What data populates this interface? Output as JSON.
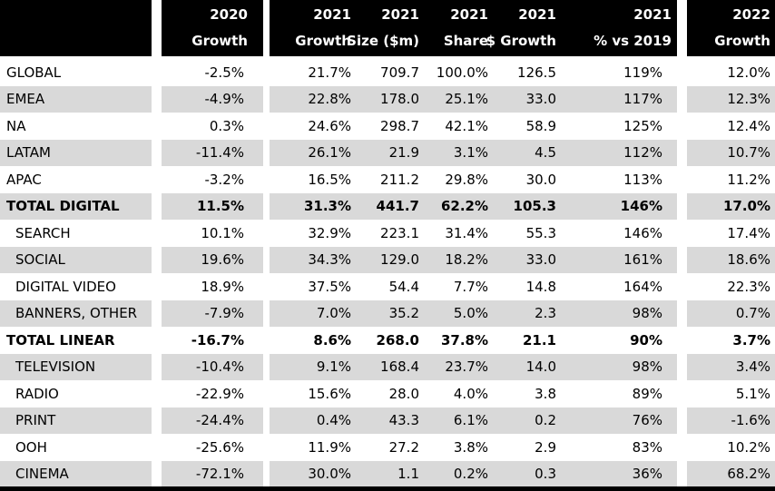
{
  "chart_data": {
    "type": "table",
    "header": [
      {
        "year": "",
        "label": ""
      },
      {
        "year": "2020",
        "label": "Growth"
      },
      {
        "year": "2021",
        "label": "Growth"
      },
      {
        "year": "2021",
        "label": "Size ($m)"
      },
      {
        "year": "2021",
        "label": "Share"
      },
      {
        "year": "2021",
        "label": "$ Growth"
      },
      {
        "year": "2021",
        "label": "% vs 2019"
      },
      {
        "year": "2022",
        "label": "Growth"
      }
    ],
    "rows": [
      {
        "label": "GLOBAL",
        "values": [
          "-2.5%",
          "21.7%",
          "709.7",
          "100.0%",
          "126.5",
          "119%",
          "12.0%"
        ],
        "bold": false,
        "indent": false,
        "shaded": false
      },
      {
        "label": "EMEA",
        "values": [
          "-4.9%",
          "22.8%",
          "178.0",
          "25.1%",
          "33.0",
          "117%",
          "12.3%"
        ],
        "bold": false,
        "indent": false,
        "shaded": true
      },
      {
        "label": "NA",
        "values": [
          "0.3%",
          "24.6%",
          "298.7",
          "42.1%",
          "58.9",
          "125%",
          "12.4%"
        ],
        "bold": false,
        "indent": false,
        "shaded": false
      },
      {
        "label": "LATAM",
        "values": [
          "-11.4%",
          "26.1%",
          "21.9",
          "3.1%",
          "4.5",
          "112%",
          "10.7%"
        ],
        "bold": false,
        "indent": false,
        "shaded": true
      },
      {
        "label": "APAC",
        "values": [
          "-3.2%",
          "16.5%",
          "211.2",
          "29.8%",
          "30.0",
          "113%",
          "11.2%"
        ],
        "bold": false,
        "indent": false,
        "shaded": false
      },
      {
        "label": "TOTAL DIGITAL",
        "values": [
          "11.5%",
          "31.3%",
          "441.7",
          "62.2%",
          "105.3",
          "146%",
          "17.0%"
        ],
        "bold": true,
        "indent": false,
        "shaded": true
      },
      {
        "label": "SEARCH",
        "values": [
          "10.1%",
          "32.9%",
          "223.1",
          "31.4%",
          "55.3",
          "146%",
          "17.4%"
        ],
        "bold": false,
        "indent": true,
        "shaded": false
      },
      {
        "label": "SOCIAL",
        "values": [
          "19.6%",
          "34.3%",
          "129.0",
          "18.2%",
          "33.0",
          "161%",
          "18.6%"
        ],
        "bold": false,
        "indent": true,
        "shaded": true
      },
      {
        "label": "DIGITAL VIDEO",
        "values": [
          "18.9%",
          "37.5%",
          "54.4",
          "7.7%",
          "14.8",
          "164%",
          "22.3%"
        ],
        "bold": false,
        "indent": true,
        "shaded": false
      },
      {
        "label": "BANNERS, OTHER",
        "values": [
          "-7.9%",
          "7.0%",
          "35.2",
          "5.0%",
          "2.3",
          "98%",
          "0.7%"
        ],
        "bold": false,
        "indent": true,
        "shaded": true
      },
      {
        "label": "TOTAL LINEAR",
        "values": [
          "-16.7%",
          "8.6%",
          "268.0",
          "37.8%",
          "21.1",
          "90%",
          "3.7%"
        ],
        "bold": true,
        "indent": false,
        "shaded": false
      },
      {
        "label": "TELEVISION",
        "values": [
          "-10.4%",
          "9.1%",
          "168.4",
          "23.7%",
          "14.0",
          "98%",
          "3.4%"
        ],
        "bold": false,
        "indent": true,
        "shaded": true
      },
      {
        "label": "RADIO",
        "values": [
          "-22.9%",
          "15.6%",
          "28.0",
          "4.0%",
          "3.8",
          "89%",
          "5.1%"
        ],
        "bold": false,
        "indent": true,
        "shaded": false
      },
      {
        "label": "PRINT",
        "values": [
          "-24.4%",
          "0.4%",
          "43.3",
          "6.1%",
          "0.2",
          "76%",
          "-1.6%"
        ],
        "bold": false,
        "indent": true,
        "shaded": true
      },
      {
        "label": "OOH",
        "values": [
          "-25.6%",
          "11.9%",
          "27.2",
          "3.8%",
          "2.9",
          "83%",
          "10.2%"
        ],
        "bold": false,
        "indent": true,
        "shaded": false
      },
      {
        "label": "CINEMA",
        "values": [
          "-72.1%",
          "30.0%",
          "1.1",
          "0.2%",
          "0.3",
          "36%",
          "68.2%"
        ],
        "bold": false,
        "indent": true,
        "shaded": true
      }
    ]
  },
  "colors": {
    "header_bg": "#000000",
    "header_text": "#ffffff",
    "shaded_row": "#d9d9d9",
    "text": "#000000",
    "bottom_rule": "#000000"
  }
}
